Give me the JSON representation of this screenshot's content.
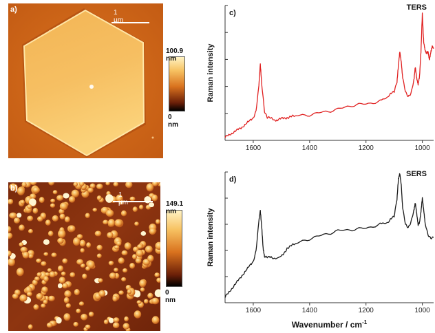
{
  "panel_a": {
    "letter": "a)",
    "scale_bar": "1 µm",
    "colorbar_max": "100.9 nm",
    "colorbar_min": "0 nm"
  },
  "panel_b": {
    "letter": "b)",
    "scale_bar": "1 µm",
    "colorbar_max": "149.1 nm",
    "colorbar_min": "0 nm"
  },
  "colors": {
    "afm_dark": "#6b1f08",
    "afm_mid": "#d9721e",
    "afm_light": "#fff3c4",
    "ters_line": "#e02020",
    "sers_line": "#1a1a1a"
  },
  "chart_data": [
    {
      "type": "line",
      "panel": "c)",
      "title": "TERS",
      "ylabel": "Raman intensity",
      "xlabel": "",
      "xlim": [
        1700,
        960
      ],
      "x_reversed": true,
      "xticks": [
        1600,
        1400,
        1200,
        1000
      ],
      "xtick_labels": [
        "1600",
        "1400",
        "1200",
        "1000"
      ],
      "ylim": [
        0,
        1
      ],
      "yticks": [
        0.2,
        0.4,
        0.6,
        0.8,
        1.0
      ],
      "y_tick_labels_shown": false,
      "grid": false,
      "series": [
        {
          "color": "#e02020",
          "x": [
            1700,
            1680,
            1660,
            1640,
            1620,
            1600,
            1590,
            1580,
            1575,
            1570,
            1560,
            1550,
            1520,
            1500,
            1480,
            1450,
            1400,
            1350,
            1300,
            1250,
            1200,
            1150,
            1120,
            1100,
            1090,
            1085,
            1080,
            1075,
            1070,
            1060,
            1050,
            1040,
            1030,
            1025,
            1020,
            1015,
            1010,
            1005,
            1000,
            997,
            995,
            990,
            985,
            980,
            975,
            970,
            965,
            960
          ],
          "y": [
            0.02,
            0.05,
            0.07,
            0.1,
            0.13,
            0.17,
            0.22,
            0.4,
            0.56,
            0.42,
            0.22,
            0.17,
            0.15,
            0.16,
            0.17,
            0.18,
            0.19,
            0.21,
            0.23,
            0.26,
            0.27,
            0.29,
            0.33,
            0.36,
            0.44,
            0.56,
            0.66,
            0.58,
            0.46,
            0.36,
            0.33,
            0.35,
            0.44,
            0.54,
            0.46,
            0.42,
            0.48,
            0.66,
            0.94,
            0.8,
            0.72,
            0.66,
            0.64,
            0.66,
            0.6,
            0.66,
            0.7,
            0.68
          ]
        }
      ]
    },
    {
      "type": "line",
      "panel": "d)",
      "title": "SERS",
      "ylabel": "Raman intensity",
      "xlabel": "Wavenumber / cm",
      "xlabel_superscript": "-1",
      "xlim": [
        1700,
        960
      ],
      "x_reversed": true,
      "xticks": [
        1600,
        1400,
        1200,
        1000
      ],
      "xtick_labels": [
        "1600",
        "1400",
        "1200",
        "1000"
      ],
      "ylim": [
        0,
        1
      ],
      "yticks": [
        0.2,
        0.4,
        0.6,
        0.8,
        1.0
      ],
      "y_tick_labels_shown": false,
      "grid": false,
      "series": [
        {
          "color": "#1a1a1a",
          "x": [
            1700,
            1680,
            1660,
            1640,
            1620,
            1600,
            1590,
            1580,
            1575,
            1570,
            1565,
            1560,
            1550,
            1530,
            1500,
            1490,
            1480,
            1450,
            1400,
            1350,
            1300,
            1250,
            1200,
            1150,
            1120,
            1100,
            1090,
            1085,
            1080,
            1075,
            1070,
            1060,
            1050,
            1040,
            1030,
            1025,
            1020,
            1015,
            1010,
            1005,
            1000,
            995,
            990,
            980,
            970,
            960
          ],
          "y": [
            0.04,
            0.1,
            0.15,
            0.21,
            0.26,
            0.32,
            0.4,
            0.62,
            0.7,
            0.58,
            0.42,
            0.36,
            0.35,
            0.34,
            0.35,
            0.38,
            0.42,
            0.45,
            0.49,
            0.52,
            0.55,
            0.56,
            0.57,
            0.6,
            0.62,
            0.66,
            0.8,
            0.95,
            0.99,
            0.9,
            0.72,
            0.6,
            0.58,
            0.62,
            0.7,
            0.76,
            0.68,
            0.6,
            0.62,
            0.7,
            0.8,
            0.7,
            0.6,
            0.52,
            0.5,
            0.5
          ]
        }
      ]
    }
  ]
}
